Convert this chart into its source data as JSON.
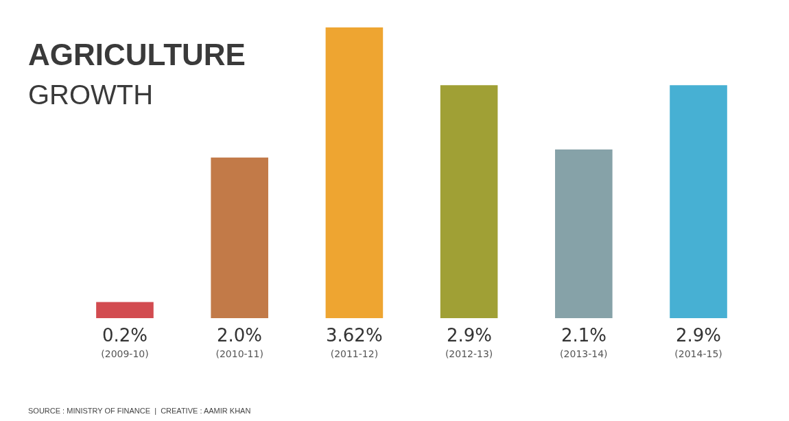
{
  "chart_data": {
    "type": "bar",
    "title": "AGRICULTURE",
    "subtitle": "GROWTH",
    "categories": [
      "(2009-10)",
      "(2010-11)",
      "(2011-12)",
      "(2012-13)",
      "(2013-14)",
      "(2014-15)"
    ],
    "values": [
      0.2,
      2.0,
      3.62,
      2.9,
      2.1,
      2.9
    ],
    "value_labels": [
      "0.2%",
      "2.0%",
      "3.62%",
      "2.9%",
      "2.1%",
      "2.9%"
    ],
    "colors": [
      "#d24b50",
      "#c27a48",
      "#eea531",
      "#a0a035",
      "#86a2a8",
      "#47b0d3"
    ],
    "annotations": [
      "SOURCE : MINISTRY OF FINANCE  |  CREATIVE : AAMIR KHAN"
    ]
  }
}
